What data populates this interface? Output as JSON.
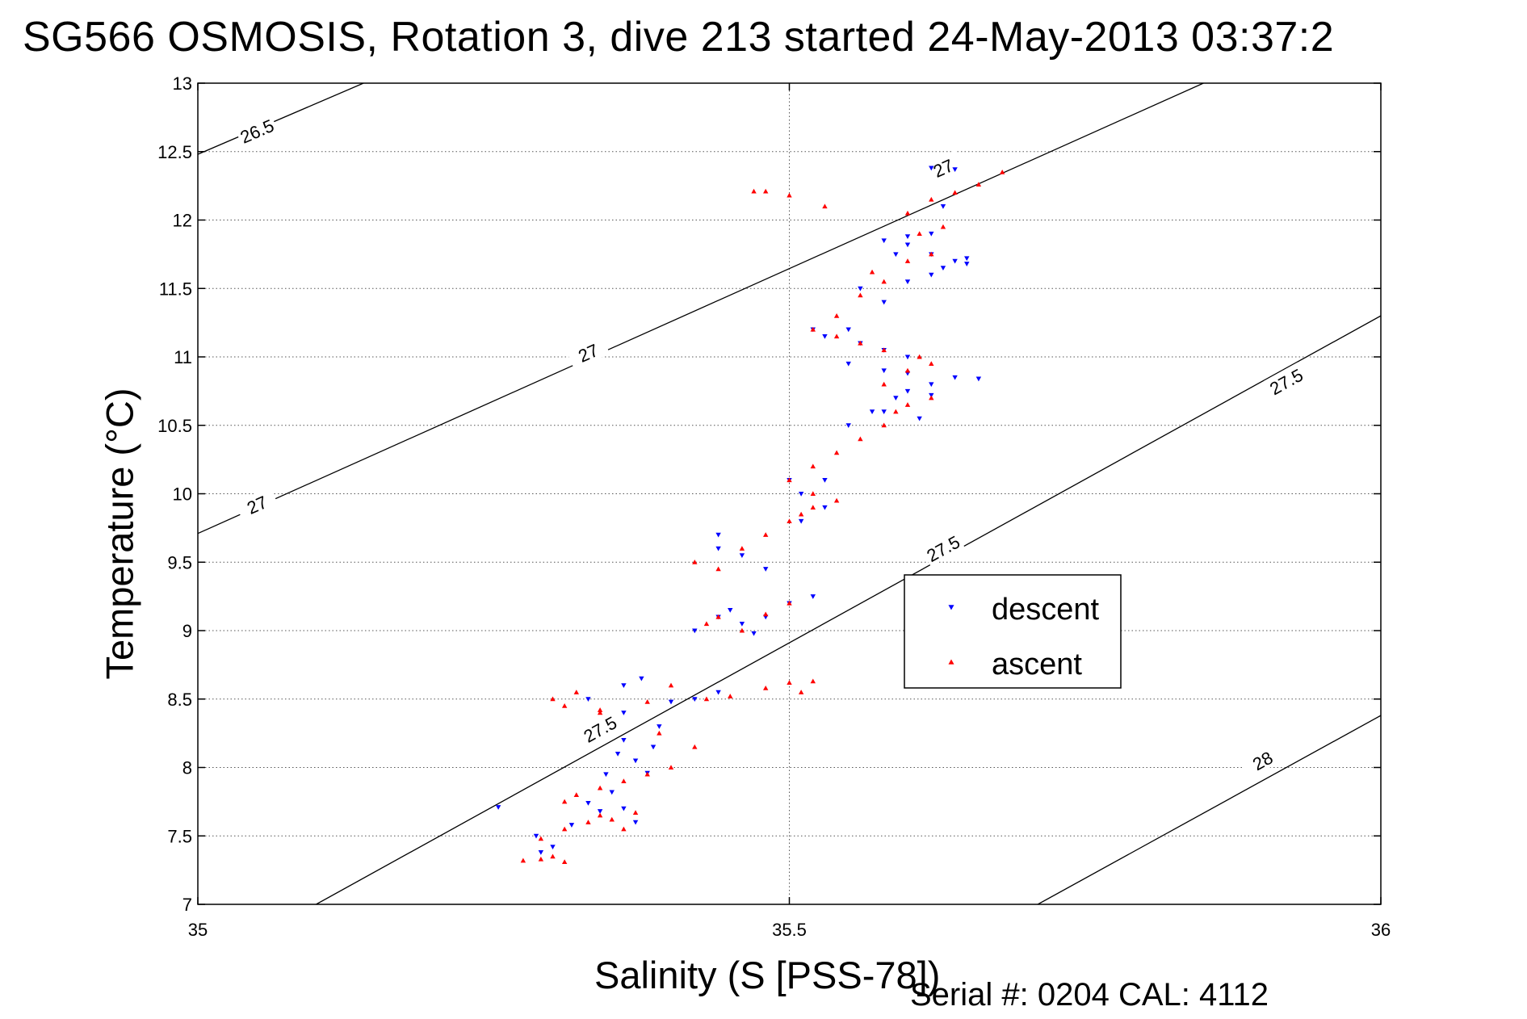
{
  "chart_data": {
    "type": "scatter",
    "title": "SG566 OSMOSIS, Rotation 3, dive 213 started 24-May-2013 03:37:2",
    "xlabel": "Salinity (S [PSS-78])",
    "ylabel": "Temperature (°C)",
    "xlim": [
      35,
      36
    ],
    "ylim": [
      7,
      13
    ],
    "x_ticks": [
      "35",
      "35.5",
      "36"
    ],
    "y_ticks": [
      "7",
      "7.5",
      "8",
      "8.5",
      "9",
      "9.5",
      "10",
      "10.5",
      "11",
      "11.5",
      "12",
      "12.5",
      "13"
    ],
    "grid": true,
    "legend_position": "center-right",
    "density_contours": [
      {
        "label": "26.5",
        "points": [
          [
            35.0,
            12.48
          ],
          [
            35.14,
            13.0
          ]
        ]
      },
      {
        "label": "27",
        "points": [
          [
            35.0,
            9.71
          ],
          [
            35.85,
            13.0
          ]
        ]
      },
      {
        "label": "27.5",
        "points": [
          [
            35.1,
            7.0
          ],
          [
            36.0,
            11.3
          ]
        ]
      },
      {
        "label": "28",
        "points": [
          [
            35.71,
            7.0
          ],
          [
            36.0,
            8.38
          ]
        ]
      }
    ],
    "contour_label_positions": [
      {
        "label": "26.5",
        "x": 35.05,
        "y": 12.65
      },
      {
        "label": "27",
        "x": 35.05,
        "y": 9.92
      },
      {
        "label": "27",
        "x": 35.33,
        "y": 11.03
      },
      {
        "label": "27",
        "x": 35.63,
        "y": 12.38
      },
      {
        "label": "27.5",
        "x": 35.34,
        "y": 8.28
      },
      {
        "label": "27.5",
        "x": 35.63,
        "y": 9.6
      },
      {
        "label": "27.5",
        "x": 35.92,
        "y": 10.82
      },
      {
        "label": "28",
        "x": 35.9,
        "y": 8.05
      }
    ],
    "series": [
      {
        "name": "descent",
        "color": "#0000ff",
        "marker": "triangle-down",
        "points": [
          [
            35.254,
            7.71
          ],
          [
            35.286,
            7.5
          ],
          [
            35.29,
            7.38
          ],
          [
            35.3,
            7.42
          ],
          [
            35.316,
            7.58
          ],
          [
            35.33,
            7.74
          ],
          [
            35.34,
            7.68
          ],
          [
            35.35,
            7.82
          ],
          [
            35.36,
            7.7
          ],
          [
            35.37,
            7.6
          ],
          [
            35.345,
            7.95
          ],
          [
            35.355,
            8.1
          ],
          [
            35.36,
            8.2
          ],
          [
            35.37,
            8.05
          ],
          [
            35.38,
            7.96
          ],
          [
            35.385,
            8.15
          ],
          [
            35.39,
            8.3
          ],
          [
            35.36,
            8.4
          ],
          [
            35.33,
            8.5
          ],
          [
            35.36,
            8.6
          ],
          [
            35.375,
            8.65
          ],
          [
            35.4,
            8.48
          ],
          [
            35.42,
            8.5
          ],
          [
            35.44,
            8.55
          ],
          [
            35.44,
            9.1
          ],
          [
            35.45,
            9.15
          ],
          [
            35.42,
            9.0
          ],
          [
            35.46,
            9.05
          ],
          [
            35.48,
            9.1
          ],
          [
            35.5,
            9.2
          ],
          [
            35.52,
            9.25
          ],
          [
            35.47,
            8.98
          ],
          [
            35.44,
            9.6
          ],
          [
            35.46,
            9.55
          ],
          [
            35.48,
            9.45
          ],
          [
            35.44,
            9.7
          ],
          [
            35.5,
            10.1
          ],
          [
            35.51,
            10.0
          ],
          [
            35.53,
            10.1
          ],
          [
            35.53,
            9.9
          ],
          [
            35.51,
            9.8
          ],
          [
            35.55,
            10.5
          ],
          [
            35.57,
            10.6
          ],
          [
            35.59,
            10.7
          ],
          [
            35.6,
            10.75
          ],
          [
            35.62,
            10.8
          ],
          [
            35.64,
            10.85
          ],
          [
            35.61,
            10.55
          ],
          [
            35.6,
            11.0
          ],
          [
            35.58,
            11.05
          ],
          [
            35.56,
            11.1
          ],
          [
            35.53,
            11.15
          ],
          [
            35.52,
            11.2
          ],
          [
            35.55,
            11.2
          ],
          [
            35.58,
            11.4
          ],
          [
            35.6,
            11.55
          ],
          [
            35.62,
            11.6
          ],
          [
            35.64,
            11.7
          ],
          [
            35.65,
            11.72
          ],
          [
            35.62,
            11.9
          ],
          [
            35.6,
            11.88
          ],
          [
            35.58,
            11.85
          ],
          [
            35.63,
            12.1
          ],
          [
            35.62,
            12.38
          ],
          [
            35.64,
            12.37
          ],
          [
            35.62,
            11.75
          ],
          [
            35.56,
            11.5
          ],
          [
            35.65,
            11.68
          ],
          [
            35.55,
            10.95
          ],
          [
            35.58,
            10.9
          ],
          [
            35.6,
            10.88
          ],
          [
            35.58,
            10.6
          ],
          [
            35.62,
            10.72
          ],
          [
            35.66,
            10.84
          ],
          [
            35.59,
            11.75
          ],
          [
            35.6,
            11.82
          ],
          [
            35.63,
            11.65
          ]
        ]
      },
      {
        "name": "ascent",
        "color": "#ff0000",
        "marker": "triangle-up",
        "points": [
          [
            35.275,
            7.32
          ],
          [
            35.29,
            7.33
          ],
          [
            35.3,
            7.35
          ],
          [
            35.31,
            7.31
          ],
          [
            35.29,
            7.48
          ],
          [
            35.31,
            7.55
          ],
          [
            35.33,
            7.6
          ],
          [
            35.34,
            7.65
          ],
          [
            35.35,
            7.62
          ],
          [
            35.36,
            7.55
          ],
          [
            35.37,
            7.67
          ],
          [
            35.31,
            7.75
          ],
          [
            35.32,
            7.8
          ],
          [
            35.34,
            7.85
          ],
          [
            35.36,
            7.9
          ],
          [
            35.38,
            7.95
          ],
          [
            35.4,
            8.0
          ],
          [
            35.42,
            8.15
          ],
          [
            35.39,
            8.25
          ],
          [
            35.34,
            8.4
          ],
          [
            35.31,
            8.45
          ],
          [
            35.3,
            8.5
          ],
          [
            35.32,
            8.55
          ],
          [
            35.34,
            8.42
          ],
          [
            35.38,
            8.48
          ],
          [
            35.4,
            8.6
          ],
          [
            35.43,
            8.5
          ],
          [
            35.45,
            8.52
          ],
          [
            35.48,
            8.58
          ],
          [
            35.5,
            8.62
          ],
          [
            35.52,
            8.63
          ],
          [
            35.51,
            8.55
          ],
          [
            35.44,
            9.1
          ],
          [
            35.43,
            9.05
          ],
          [
            35.46,
            9.0
          ],
          [
            35.48,
            9.12
          ],
          [
            35.5,
            9.2
          ],
          [
            35.42,
            9.5
          ],
          [
            35.44,
            9.45
          ],
          [
            35.46,
            9.6
          ],
          [
            35.48,
            9.7
          ],
          [
            35.5,
            9.8
          ],
          [
            35.51,
            9.85
          ],
          [
            35.52,
            9.9
          ],
          [
            35.54,
            9.95
          ],
          [
            35.52,
            10.0
          ],
          [
            35.5,
            10.1
          ],
          [
            35.52,
            10.2
          ],
          [
            35.54,
            10.3
          ],
          [
            35.56,
            10.4
          ],
          [
            35.58,
            10.5
          ],
          [
            35.59,
            10.6
          ],
          [
            35.6,
            10.65
          ],
          [
            35.62,
            10.7
          ],
          [
            35.58,
            10.8
          ],
          [
            35.6,
            10.9
          ],
          [
            35.62,
            10.95
          ],
          [
            35.61,
            11.0
          ],
          [
            35.58,
            11.05
          ],
          [
            35.56,
            11.1
          ],
          [
            35.54,
            11.15
          ],
          [
            35.52,
            11.2
          ],
          [
            35.54,
            11.3
          ],
          [
            35.56,
            11.45
          ],
          [
            35.58,
            11.55
          ],
          [
            35.6,
            11.7
          ],
          [
            35.62,
            11.75
          ],
          [
            35.61,
            11.9
          ],
          [
            35.63,
            11.95
          ],
          [
            35.6,
            12.05
          ],
          [
            35.62,
            12.15
          ],
          [
            35.64,
            12.2
          ],
          [
            35.66,
            12.26
          ],
          [
            35.68,
            12.35
          ],
          [
            35.48,
            12.21
          ],
          [
            35.47,
            12.21
          ],
          [
            35.5,
            12.18
          ],
          [
            35.53,
            12.1
          ],
          [
            35.57,
            11.62
          ]
        ]
      }
    ]
  },
  "annotations": {
    "serial": "Serial #: 0204  CAL: 4112"
  }
}
